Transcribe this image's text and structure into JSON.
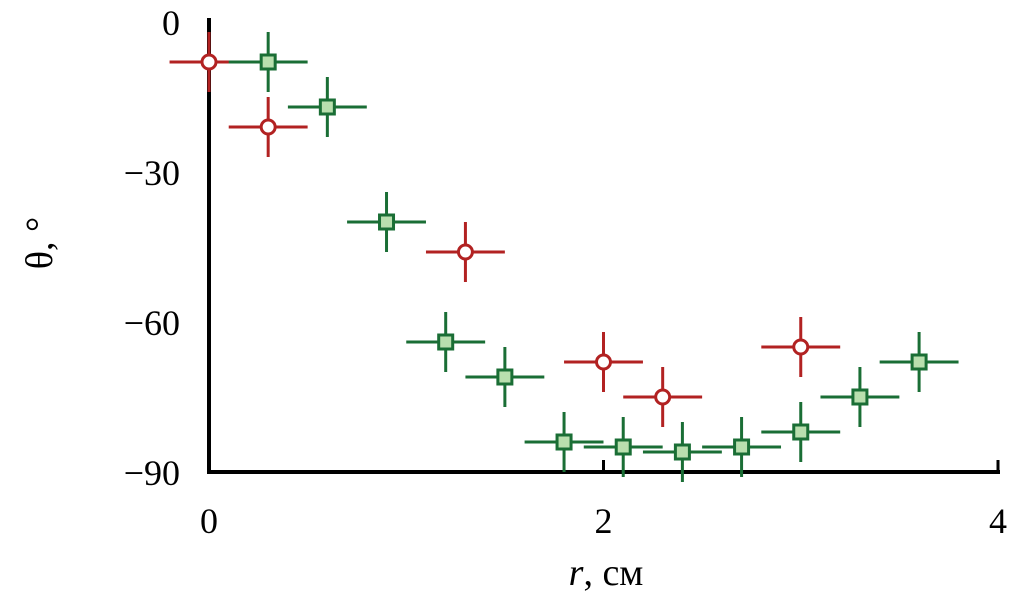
{
  "chart_data": {
    "type": "scatter",
    "title": "",
    "xlabel_italic": "r",
    "xlabel_rest": ", см",
    "ylabel": "θ, °",
    "xlim": [
      0,
      4
    ],
    "ylim": [
      -90,
      0
    ],
    "x_ticks": [
      0,
      2,
      4
    ],
    "y_ticks": [
      0,
      -30,
      -60,
      -90
    ],
    "x_tick_labels": [
      "0",
      "2",
      "4"
    ],
    "y_tick_labels": [
      "0",
      "−30",
      "−60",
      "−90"
    ],
    "grid": false,
    "legend": "none",
    "series": [
      {
        "marker": "open-circle",
        "color": "#b22222",
        "x_error": 0.2,
        "y_error": 6,
        "points": [
          {
            "x": 0.0,
            "y": -8
          },
          {
            "x": 0.3,
            "y": -21
          },
          {
            "x": 1.3,
            "y": -46
          },
          {
            "x": 2.0,
            "y": -68
          },
          {
            "x": 2.3,
            "y": -75
          },
          {
            "x": 3.0,
            "y": -65
          }
        ]
      },
      {
        "marker": "filled-square",
        "color": "#1a6e35",
        "fill": "#b9dfae",
        "x_error": 0.2,
        "y_error": 6,
        "points": [
          {
            "x": 0.3,
            "y": -8
          },
          {
            "x": 0.6,
            "y": -17
          },
          {
            "x": 0.9,
            "y": -40
          },
          {
            "x": 1.2,
            "y": -64
          },
          {
            "x": 1.5,
            "y": -71
          },
          {
            "x": 1.8,
            "y": -84
          },
          {
            "x": 2.1,
            "y": -85
          },
          {
            "x": 2.4,
            "y": -86
          },
          {
            "x": 2.7,
            "y": -85
          },
          {
            "x": 3.0,
            "y": -82
          },
          {
            "x": 3.3,
            "y": -75
          },
          {
            "x": 3.6,
            "y": -68
          }
        ]
      }
    ]
  }
}
